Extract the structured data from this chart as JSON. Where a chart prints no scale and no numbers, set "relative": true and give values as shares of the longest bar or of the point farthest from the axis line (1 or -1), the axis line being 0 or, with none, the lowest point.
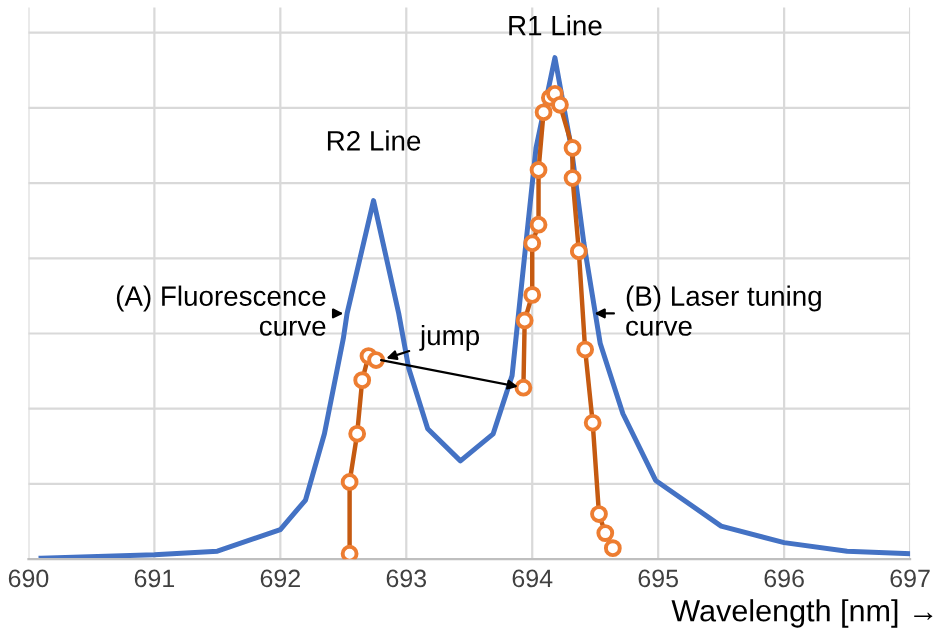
{
  "chart_data": {
    "type": "line",
    "relative": true,
    "xlabel": "Wavelength [nm] →",
    "xlim": [
      690,
      697
    ],
    "xticks": [
      690,
      691,
      692,
      693,
      694,
      695,
      696,
      697
    ],
    "grid": true,
    "tick_labels": "x",
    "series": [
      {
        "color": "#4472c4",
        "marker": "none",
        "x": [
          690.1,
          691.0,
          691.5,
          692.0,
          692.2,
          692.35,
          692.5,
          692.53,
          692.74,
          692.94,
          693.02,
          693.17,
          693.43,
          693.69,
          693.84,
          693.95,
          694.03,
          694.18,
          694.31,
          694.41,
          694.54,
          694.72,
          694.98,
          695.5,
          696.0,
          696.5,
          697.0
        ],
        "values": [
          0.002,
          0.009,
          0.016,
          0.059,
          0.118,
          0.25,
          0.44,
          0.49,
          0.715,
          0.49,
          0.38,
          0.26,
          0.196,
          0.25,
          0.366,
          0.63,
          0.82,
          1.0,
          0.82,
          0.63,
          0.43,
          0.29,
          0.157,
          0.066,
          0.033,
          0.016,
          0.011
        ]
      },
      {
        "color": "#c55a11",
        "marker": "circle",
        "x": [
          692.55,
          692.55,
          692.61,
          692.65,
          692.7,
          692.76,
          693.3,
          693.93,
          693.94,
          694.0,
          694.0,
          694.05,
          694.05,
          694.09,
          694.14,
          694.18,
          694.22,
          694.32,
          694.32,
          694.37,
          694.42,
          694.48,
          694.53,
          694.58,
          694.64
        ],
        "values": [
          0.011,
          0.154,
          0.25,
          0.357,
          0.405,
          0.397,
          null,
          0.342,
          0.476,
          0.527,
          0.63,
          0.667,
          0.776,
          0.891,
          0.92,
          0.928,
          0.906,
          0.82,
          0.76,
          0.614,
          0.418,
          0.272,
          0.09,
          0.052,
          0.022
        ]
      }
    ],
    "annotations": [
      {
        "text": "R1 Line",
        "x": 694.18,
        "y": 1.0
      },
      {
        "text": "R2 Line",
        "x": 692.74,
        "y": 0.715
      },
      {
        "text": "(A) Fluorescence\ncurve",
        "x": 692.5,
        "y": 0.49
      },
      {
        "text": "(B) Laser tuning\ncurve",
        "x": 694.45,
        "y": 0.49
      },
      {
        "text": "jump",
        "x": 692.8,
        "y": 0.397
      }
    ]
  }
}
